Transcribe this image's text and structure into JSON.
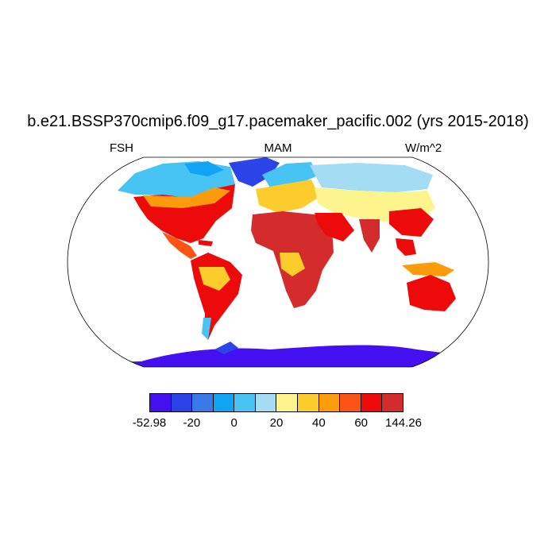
{
  "title": "b.e21.BSSP370cmip6.f09_g17.pacemaker_pacific.002 (yrs 2015-2018)",
  "subtitle_left": "FSH",
  "subtitle_center": "MAM",
  "subtitle_right": "W/m^2",
  "colorbar": {
    "colors": [
      "#4410f0",
      "#2a44e8",
      "#3a7ae8",
      "#12a4f4",
      "#48c4f4",
      "#a4dcf4",
      "#fcf48c",
      "#fccc2c",
      "#fc9c0c",
      "#fc5414",
      "#ec0a0a",
      "#d42c2c"
    ],
    "tick_labels": [
      "-52.98",
      "-20",
      "0",
      "20",
      "40",
      "60",
      "144.26"
    ]
  }
}
